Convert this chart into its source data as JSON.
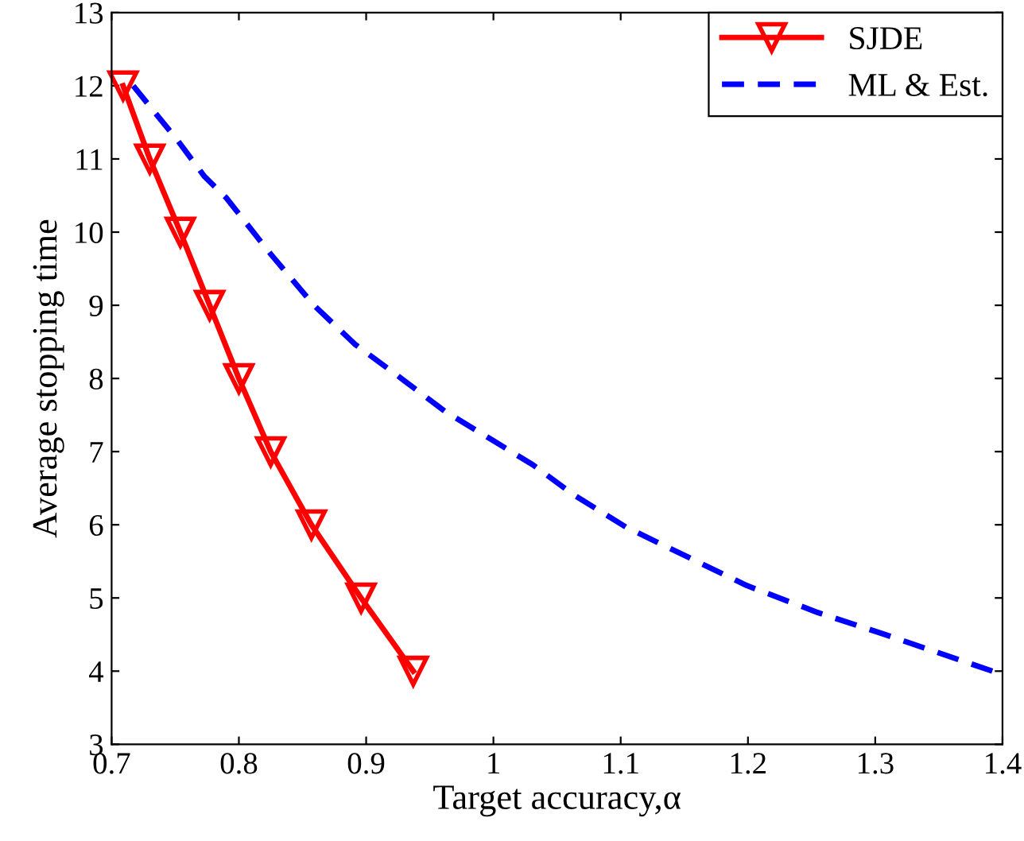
{
  "chart_data": {
    "type": "line",
    "xlabel": "Target accuracy,α",
    "ylabel": "Average stopping time",
    "xlim": [
      0.7,
      1.4
    ],
    "xticks": [
      0.7,
      0.8,
      0.9,
      1,
      1.1,
      1.2,
      1.3,
      1.4
    ],
    "ylim": [
      3,
      13
    ],
    "yticks": [
      3,
      4,
      5,
      6,
      7,
      8,
      9,
      10,
      11,
      12,
      13
    ],
    "grid": false,
    "legend": "top right",
    "series": [
      {
        "name": "SJDE",
        "color": "#ff0000",
        "marker": "triangle",
        "line_style": "solid",
        "x": [
          0.709,
          0.73,
          0.754,
          0.777,
          0.8,
          0.825,
          0.857,
          0.896,
          0.937
        ],
        "values": [
          12,
          11,
          10,
          9,
          8,
          7,
          6,
          5,
          4
        ]
      },
      {
        "name": "ML & Est.",
        "color": "#0000ff",
        "marker": "none",
        "line_style": "dashed",
        "x": [
          0.717,
          0.73,
          0.752,
          0.773,
          0.79,
          0.825,
          0.859,
          0.891,
          0.923,
          0.962,
          0.997,
          1.031,
          1.063,
          1.104,
          1.199,
          1.255,
          1.306,
          1.392
        ],
        "values": [
          12,
          11.72,
          11.25,
          10.76,
          10.47,
          9.7,
          9.0,
          8.47,
          8.06,
          7.55,
          7.18,
          6.82,
          6.41,
          5.97,
          5.17,
          4.8,
          4.51,
          4.0
        ]
      }
    ]
  }
}
